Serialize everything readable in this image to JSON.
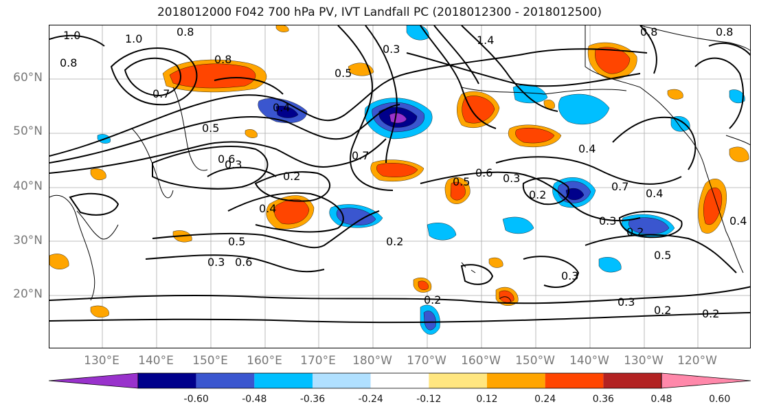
{
  "title": "2018012000 F042 700 hPa PV, IVT Landfall PC (2018012300 - 2018012500)",
  "lat_labels": [
    "60°N",
    "50°N",
    "40°N",
    "30°N",
    "20°N"
  ],
  "lon_labels": [
    "130°E",
    "140°E",
    "150°E",
    "160°E",
    "170°E",
    "180°W",
    "170°W",
    "160°W",
    "150°W",
    "140°W",
    "130°W",
    "120°W"
  ],
  "contour_labels": [
    "1.0",
    "1.0",
    "0.8",
    "0.8",
    "1.4",
    "0.8",
    "0.8",
    "0.7",
    "0.8",
    "0.5",
    "0.3",
    "0.4",
    "0.5",
    "0.6",
    "0.3",
    "0.2",
    "0.4",
    "0.7",
    "0.6",
    "0.5",
    "0.3",
    "0.2",
    "0.4",
    "0.7",
    "0.4",
    "0.3",
    "0.2",
    "0.2",
    "0.5",
    "0.6",
    "0.3",
    "0.3",
    "0.5",
    "0.4",
    "0.2",
    "0.3",
    "0.2",
    "0.2"
  ],
  "colorbar": {
    "colors": [
      "#9932CC",
      "#00008B",
      "#3A56CF",
      "#00BFFF",
      "#B0E0FF",
      "#FFFFFF",
      "#FFE680",
      "#FFA500",
      "#FF4500",
      "#B22222",
      "#FF88AA"
    ],
    "tick_labels": [
      "-0.60",
      "-0.48",
      "-0.36",
      "-0.24",
      "-0.12",
      "0.12",
      "0.24",
      "0.36",
      "0.48",
      "0.60"
    ]
  }
}
